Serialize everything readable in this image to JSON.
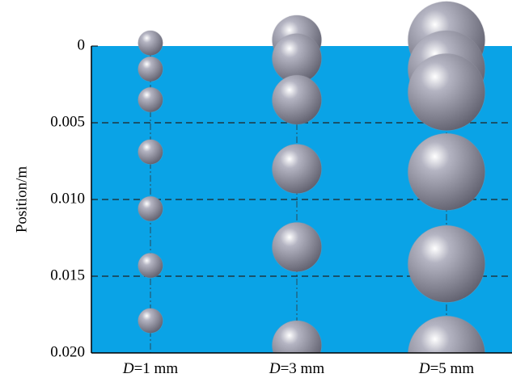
{
  "chart_data": {
    "type": "bubble",
    "y_label": "Position/m",
    "x_symbol": "D",
    "categories": [
      "=1 mm",
      "=3 mm",
      "=5 mm"
    ],
    "ylim": [
      0,
      0.02
    ],
    "yticks": [
      0,
      0.005,
      {
        "value": 0.01,
        "label": "0.010"
      },
      {
        "value": 0.015,
        "label": "0.015"
      },
      {
        "value": 0.02,
        "label": "0.020"
      }
    ],
    "grid": true,
    "background": "#0aa3e6",
    "bubble_color": "#9a9aa8",
    "series": [
      {
        "size": 0.0016,
        "values": [
          -0.0002,
          0.0015,
          0.0035,
          0.0069,
          0.0106,
          0.0143,
          0.0179
        ]
      },
      {
        "size": 0.0032,
        "values": [
          -0.0004,
          0.0008,
          0.0035,
          0.008,
          0.0131,
          0.0195
        ]
      },
      {
        "size": 0.005,
        "values": [
          -0.0004,
          0.0015,
          0.003,
          0.0082,
          0.0142,
          0.0201
        ]
      }
    ]
  }
}
